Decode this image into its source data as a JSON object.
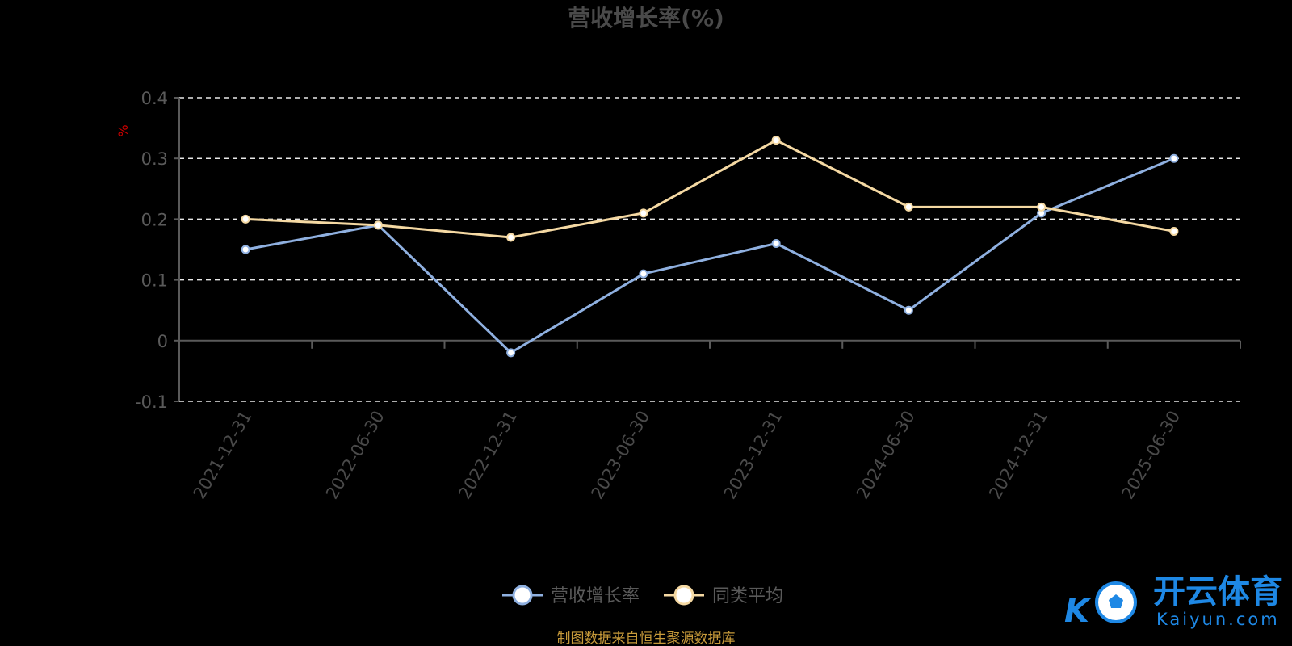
{
  "chart_data": {
    "type": "line",
    "title": "营收增长率(%)",
    "unit_label": "%",
    "categories": [
      "2021-12-31",
      "2022-06-30",
      "2022-12-31",
      "2023-06-30",
      "2023-12-31",
      "2024-06-30",
      "2024-12-31",
      "2025-06-30"
    ],
    "series": [
      {
        "name": "营收增长率",
        "color": "#8fb0e0",
        "values": [
          0.15,
          0.19,
          -0.02,
          0.11,
          0.16,
          0.05,
          0.21,
          0.3
        ]
      },
      {
        "name": "同类平均",
        "color": "#f5d9a3",
        "values": [
          0.2,
          0.19,
          0.17,
          0.21,
          0.33,
          0.22,
          0.22,
          0.18
        ]
      }
    ],
    "ylim": [
      -0.1,
      0.4
    ],
    "yticks": [
      -0.1,
      0,
      0.1,
      0.2,
      0.3,
      0.4
    ],
    "ytick_labels": [
      "-0.1",
      "0",
      "0.1",
      "0.2",
      "0.3",
      "0.4"
    ],
    "grid": true,
    "legend_position": "bottom"
  },
  "source_note": "制图数据来自恒生聚源数据库",
  "brand": {
    "name": "开云体育",
    "domain": "Kaiyun.com",
    "logo_letter": "K",
    "color": "#1e88e5"
  }
}
